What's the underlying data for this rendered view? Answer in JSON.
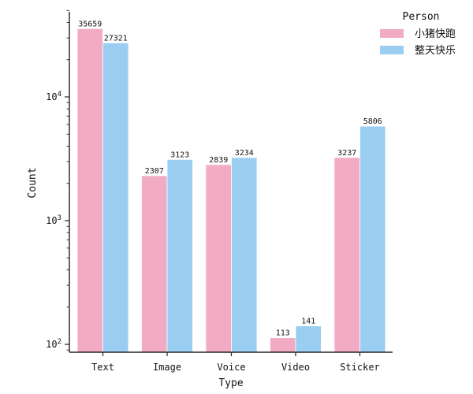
{
  "chart_data": {
    "type": "bar",
    "xlabel": "Type",
    "ylabel": "Count",
    "yscale": "log",
    "ylim": [
      85,
      50000
    ],
    "categories": [
      "Text",
      "Image",
      "Voice",
      "Video",
      "Sticker"
    ],
    "y_ticks": [
      {
        "value": 100,
        "mantissa": "10",
        "exponent": "2"
      },
      {
        "value": 1000,
        "mantissa": "10",
        "exponent": "3"
      },
      {
        "value": 10000,
        "mantissa": "10",
        "exponent": "4"
      }
    ],
    "legend": {
      "title": "Person",
      "placement": "top-right"
    },
    "series": [
      {
        "name": "小猪快跑",
        "color": "#f1abc2",
        "values": [
          35659,
          2307,
          2839,
          113,
          3237
        ],
        "labels": [
          "35659",
          "2307",
          "2839",
          "113",
          "3237"
        ]
      },
      {
        "name": "整天快乐",
        "color": "#99cdf1",
        "values": [
          27321,
          3123,
          3234,
          141,
          5806
        ],
        "labels": [
          "27321",
          "3123",
          "3234",
          "141",
          "5806"
        ]
      }
    ]
  }
}
